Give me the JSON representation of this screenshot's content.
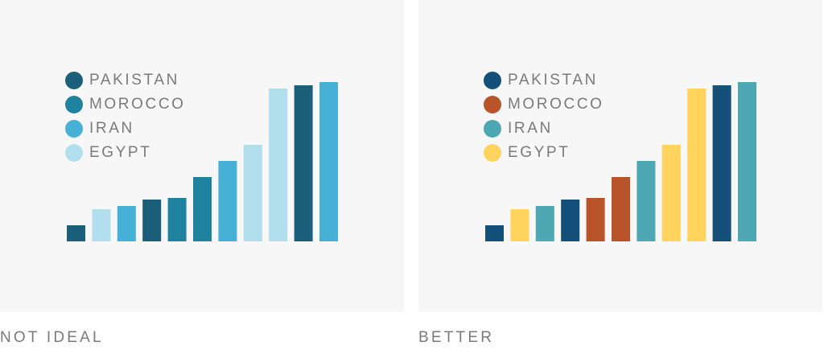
{
  "chart_data": [
    {
      "type": "bar",
      "caption": "NOT IDEAL",
      "legend": [
        "PAKISTAN",
        "MOROCCO",
        "IRAN",
        "EGYPT"
      ],
      "colors": {
        "PAKISTAN": "#1c5f7a",
        "MOROCCO": "#1f83a0",
        "IRAN": "#47b0d6",
        "EGYPT": "#b1deed"
      },
      "bar_series": [
        "PAKISTAN",
        "EGYPT",
        "IRAN",
        "PAKISTAN",
        "MOROCCO",
        "MOROCCO",
        "IRAN",
        "EGYPT",
        "EGYPT",
        "PAKISTAN",
        "IRAN"
      ],
      "values": [
        10,
        20,
        22,
        26,
        27,
        40,
        50,
        60,
        95,
        97,
        99
      ],
      "ylim": [
        0,
        100
      ],
      "grid": false,
      "legend_position": "top-left"
    },
    {
      "type": "bar",
      "caption": "BETTER",
      "legend": [
        "PAKISTAN",
        "MOROCCO",
        "IRAN",
        "EGYPT"
      ],
      "colors": {
        "PAKISTAN": "#14507a",
        "MOROCCO": "#b9532a",
        "IRAN": "#4ea8b4",
        "EGYPT": "#ffd35c"
      },
      "bar_series": [
        "PAKISTAN",
        "EGYPT",
        "IRAN",
        "PAKISTAN",
        "MOROCCO",
        "MOROCCO",
        "IRAN",
        "EGYPT",
        "EGYPT",
        "PAKISTAN",
        "IRAN"
      ],
      "values": [
        10,
        20,
        22,
        26,
        27,
        40,
        50,
        60,
        95,
        97,
        99
      ],
      "ylim": [
        0,
        100
      ],
      "grid": false,
      "legend_position": "top-left"
    }
  ]
}
